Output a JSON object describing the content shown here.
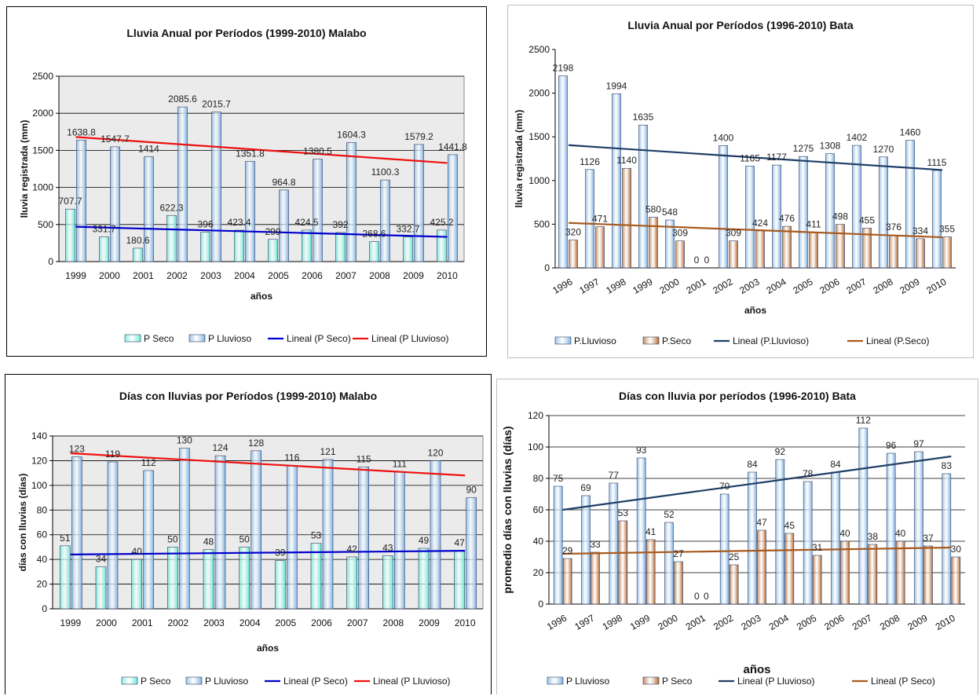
{
  "chart_data": [
    {
      "type": "bar",
      "title": "Lluvia Anual por Períodos (1999-2010) Malabo",
      "xlabel": "años",
      "ylabel": "lluvia registrada (mm)",
      "ylim": [
        0,
        2500
      ],
      "yticks": [
        0,
        500,
        1000,
        1500,
        2000,
        2500
      ],
      "grid": true,
      "legend_position": "bottom",
      "categories": [
        "1999",
        "2000",
        "2001",
        "2002",
        "2003",
        "2004",
        "2005",
        "2006",
        "2007",
        "2008",
        "2009",
        "2010"
      ],
      "series": [
        {
          "name": "P Seco",
          "color": "#5fe8d3",
          "values": [
            707.7,
            331.7,
            180.6,
            622.3,
            396,
            423.4,
            299,
            424.5,
            392,
            268.6,
            332.7,
            425.2
          ],
          "labels": [
            "707.7",
            "331.7",
            "180.6",
            "622.3",
            "396",
            "423.4",
            "299",
            "424.5",
            "392",
            "268.6",
            "332.7",
            "425.2"
          ]
        },
        {
          "name": "P Lluvioso",
          "color": "#7aaee0",
          "values": [
            1638.8,
            1547.7,
            1414,
            2085.6,
            2015.7,
            1351.8,
            964.8,
            1380.5,
            1604.3,
            1100.3,
            1579.2,
            1441.8
          ],
          "labels": [
            "1638.8",
            "1547.7",
            "1414",
            "2085.6",
            "2015.7",
            "1351.8",
            "964.8",
            "1380.5",
            "1604.3",
            "1100.3",
            "1579.2",
            "1441.8"
          ]
        }
      ],
      "trendlines": [
        {
          "name": "Lineal (P Seco)",
          "color": "#0000cc",
          "start": 470,
          "end": 333
        },
        {
          "name": "Lineal (P Lluvioso)",
          "color": "#ee1111",
          "start": 1680,
          "end": 1330
        }
      ]
    },
    {
      "type": "bar",
      "title": "Lluvia Anual por Períodos (1996-2010) Bata",
      "xlabel": "años",
      "ylabel": "lluvia registrada (mm)",
      "ylim": [
        0,
        2500
      ],
      "yticks": [
        0,
        500,
        1000,
        1500,
        2000,
        2500
      ],
      "grid": false,
      "legend_position": "bottom",
      "categories": [
        "1996",
        "1997",
        "1998",
        "1999",
        "2000",
        "2001",
        "2002",
        "2003",
        "2004",
        "2005",
        "2006",
        "2007",
        "2008",
        "2009",
        "2010"
      ],
      "series": [
        {
          "name": "P.Lluvioso",
          "color": "#7aaee0",
          "values": [
            2198,
            1126,
            1994,
            1635,
            548,
            0,
            1400,
            1165,
            1177,
            1275,
            1308,
            1402,
            1270,
            1460,
            1115
          ],
          "labels": [
            "2198",
            "1126",
            "1994",
            "1635",
            "548",
            "0",
            "1400",
            "1165",
            "1177",
            "1275",
            "1308",
            "1402",
            "1270",
            "1460",
            "1115"
          ]
        },
        {
          "name": "P.Seco",
          "color": "#b5652a",
          "values": [
            320,
            471,
            1140,
            580,
            309,
            0,
            309,
            424,
            476,
            411,
            498,
            455,
            376,
            334,
            355
          ],
          "labels": [
            "320",
            "471",
            "1140",
            "580",
            "309",
            "0",
            "309",
            "424",
            "476",
            "411",
            "498",
            "455",
            "376",
            "334",
            "355"
          ]
        }
      ],
      "trendlines": [
        {
          "name": "Lineal (P.Lluvioso)",
          "color": "#1f3e66",
          "start": 1405,
          "end": 1120
        },
        {
          "name": "Lineal (P.Seco)",
          "color": "#a85a1e",
          "start": 515,
          "end": 350
        }
      ]
    },
    {
      "type": "bar",
      "title": "Días con lluvias por Períodos (1999-2010) Malabo",
      "xlabel": "años",
      "ylabel": "días con lluvias (días)",
      "ylim": [
        0,
        140
      ],
      "yticks": [
        0,
        20,
        40,
        60,
        80,
        100,
        120,
        140
      ],
      "grid": true,
      "legend_position": "bottom",
      "categories": [
        "1999",
        "2000",
        "2001",
        "2002",
        "2003",
        "2004",
        "2005",
        "2006",
        "2007",
        "2008",
        "2009",
        "2010"
      ],
      "series": [
        {
          "name": "P Seco",
          "color": "#5fe8d3",
          "values": [
            51,
            34,
            40,
            50,
            48,
            50,
            39,
            53,
            42,
            43,
            49,
            47
          ],
          "labels": [
            "51",
            "34",
            "40",
            "50",
            "48",
            "50",
            "39",
            "53",
            "42",
            "43",
            "49",
            "47"
          ]
        },
        {
          "name": "P Lluvioso",
          "color": "#7aaee0",
          "values": [
            123,
            119,
            112,
            130,
            124,
            128,
            116,
            121,
            115,
            111,
            120,
            90
          ],
          "labels": [
            "123",
            "119",
            "112",
            "130",
            "124",
            "128",
            "116",
            "121",
            "115",
            "111",
            "120",
            "90"
          ]
        }
      ],
      "trendlines": [
        {
          "name": "Lineal (P Seco)",
          "color": "#0000cc",
          "start": 44,
          "end": 47
        },
        {
          "name": "Lineal (P Lluvioso)",
          "color": "#ee1111",
          "start": 126,
          "end": 108
        }
      ]
    },
    {
      "type": "bar",
      "title": "Días con lluvia por períodos (1996-2010) Bata",
      "xlabel": "años",
      "ylabel": "promedio días con lluvias (días)",
      "ylim": [
        0,
        120
      ],
      "yticks": [
        0,
        20,
        40,
        60,
        80,
        100,
        120
      ],
      "grid": true,
      "legend_position": "bottom",
      "categories": [
        "1996",
        "1997",
        "1998",
        "1999",
        "2000",
        "2001",
        "2002",
        "2003",
        "2004",
        "2005",
        "2006",
        "2007",
        "2008",
        "2009",
        "2010"
      ],
      "series": [
        {
          "name": "P Lluvioso",
          "color": "#7aaee0",
          "values": [
            75,
            69,
            77,
            93,
            52,
            0,
            70,
            84,
            92,
            78,
            84,
            112,
            96,
            97,
            83
          ],
          "labels": [
            "75",
            "69",
            "77",
            "93",
            "52",
            "0",
            "70",
            "84",
            "92",
            "78",
            "84",
            "112",
            "96",
            "97",
            "83"
          ]
        },
        {
          "name": "P Seco",
          "color": "#b5652a",
          "values": [
            29,
            33,
            53,
            41,
            27,
            0,
            25,
            47,
            45,
            31,
            40,
            38,
            40,
            37,
            30
          ],
          "labels": [
            "29",
            "33",
            "53",
            "41",
            "27",
            "0",
            "25",
            "47",
            "45",
            "31",
            "40",
            "38",
            "40",
            "37",
            "30"
          ]
        }
      ],
      "trendlines": [
        {
          "name": "Lineal (P Lluvioso)",
          "color": "#1f3e66",
          "start": 60,
          "end": 94
        },
        {
          "name": "Lineal (P Seco)",
          "color": "#a85a1e",
          "start": 32,
          "end": 36
        }
      ]
    }
  ]
}
